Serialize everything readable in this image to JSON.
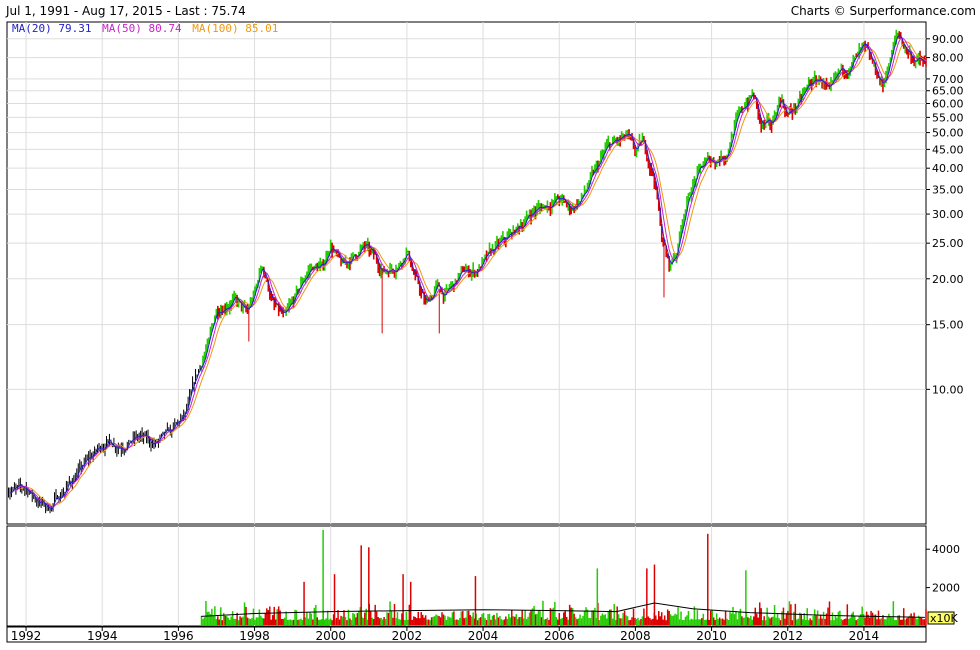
{
  "header": {
    "range_text": "Jul 1, 1991 - Aug 17, 2015 - Last : 75.74",
    "credit": "Charts © Surperformance.com"
  },
  "legend": [
    {
      "label": "MA(20)",
      "value": "79.31",
      "color": "#2222cc"
    },
    {
      "label": "MA(50)",
      "value": "80.74",
      "color": "#cc22cc"
    },
    {
      "label": "MA(100)",
      "value": "85.01",
      "color": "#ee9911"
    }
  ],
  "colors": {
    "up": "#22cc00",
    "down": "#dd0000",
    "early": "#000000",
    "grid": "#dddddd"
  },
  "chart_data": [
    {
      "type": "line",
      "title": "Jul 1, 1991 - Aug 17, 2015 - Last : 75.74",
      "scale": "log",
      "grid": true,
      "y_ticks": [
        10,
        15,
        20,
        25,
        30,
        35,
        40,
        45,
        50,
        55,
        60,
        65,
        70,
        80,
        90
      ],
      "y_tick_labels": [
        "10.00",
        "15.00",
        "20.00",
        "25.00",
        "30.00",
        "35.00",
        "40.00",
        "45.00",
        "50.00",
        "55.00",
        "60.00",
        "65.00",
        "70.00",
        "80.00",
        "90.00"
      ],
      "x_tick_labels": [
        "1992",
        "1994",
        "1996",
        "1998",
        "2000",
        "2002",
        "2004",
        "2006",
        "2008",
        "2010",
        "2012",
        "2014"
      ],
      "x_ticks": [
        1992,
        1994,
        1996,
        1998,
        2000,
        2002,
        2004,
        2006,
        2008,
        2010,
        2012,
        2014
      ],
      "xlim": [
        1991.5,
        2015.63
      ],
      "ylim": [
        4.3,
        100
      ],
      "last": 75.74,
      "series": [
        {
          "name": "Price",
          "x": [
            1991.5,
            1991.8,
            1992.0,
            1992.3,
            1992.6,
            1993.0,
            1993.4,
            1993.8,
            1994.1,
            1994.5,
            1995.0,
            1995.4,
            1995.8,
            1996.2,
            1996.5,
            1996.8,
            1997.0,
            1997.3,
            1997.5,
            1997.8,
            1998.0,
            1998.2,
            1998.5,
            1998.8,
            1999.0,
            1999.3,
            1999.5,
            1999.8,
            2000.0,
            2000.3,
            2000.6,
            2000.9,
            2001.2,
            2001.4,
            2001.6,
            2001.8,
            2002.0,
            2002.2,
            2002.5,
            2002.8,
            2003.0,
            2003.2,
            2003.5,
            2003.8,
            2004.0,
            2004.3,
            2004.6,
            2005.0,
            2005.3,
            2005.6,
            2006.0,
            2006.3,
            2006.6,
            2007.0,
            2007.3,
            2007.6,
            2007.8,
            2008.0,
            2008.2,
            2008.5,
            2008.7,
            2008.9,
            2009.1,
            2009.3,
            2009.6,
            2009.9,
            2010.1,
            2010.4,
            2010.6,
            2010.9,
            2011.1,
            2011.3,
            2011.6,
            2011.8,
            2012.0,
            2012.3,
            2012.6,
            2012.9,
            2013.1,
            2013.4,
            2013.7,
            2014.0,
            2014.3,
            2014.5,
            2014.7,
            2014.9,
            2015.1,
            2015.3,
            2015.5,
            2015.63
          ],
          "values": [
            5.4,
            5.3,
            5.4,
            5.0,
            4.75,
            5.3,
            6.0,
            6.7,
            7.2,
            7.1,
            7.4,
            7.1,
            7.6,
            8.5,
            11.0,
            13.3,
            16.5,
            17.3,
            17.5,
            16.0,
            18.0,
            22.0,
            17.0,
            15.5,
            17.0,
            20.0,
            21.5,
            21.5,
            25.0,
            21.5,
            23.0,
            24.5,
            22.5,
            21.0,
            21.5,
            22.0,
            24.0,
            20.5,
            17.0,
            19.0,
            18.0,
            19.0,
            21.0,
            21.0,
            22.0,
            24.0,
            25.5,
            28.0,
            30.5,
            31.5,
            33.0,
            31.0,
            33.0,
            40.0,
            46.0,
            47.5,
            48.5,
            44.0,
            47.0,
            38.0,
            26.0,
            21.5,
            24.0,
            31.0,
            38.0,
            42.0,
            42.0,
            44.0,
            52.0,
            60.0,
            64.0,
            52.0,
            52.0,
            63.0,
            56.0,
            60.0,
            68.0,
            70.0,
            63.0,
            73.0,
            77.0,
            84.0,
            74.0,
            67.0,
            80.0,
            93.0,
            85.0,
            80.0,
            78.0,
            75.74
          ]
        },
        {
          "name": "MA(20)",
          "last": 79.31
        },
        {
          "name": "MA(50)",
          "last": 80.74
        },
        {
          "name": "MA(100)",
          "last": 85.01
        }
      ]
    },
    {
      "type": "bar",
      "unit": "x10K",
      "ylim": [
        0,
        5000
      ],
      "y_ticks": [
        2000,
        4000
      ],
      "y_tick_labels": [
        "2000",
        "4000"
      ],
      "x_start": 1996.6,
      "avg_line_color": "#000000",
      "spikes": [
        {
          "x": 1999.8,
          "value": 5000,
          "color": "#22cc00"
        },
        {
          "x": 2000.8,
          "value": 4200,
          "color": "#dd0000"
        },
        {
          "x": 2001.0,
          "value": 4100,
          "color": "#dd0000"
        },
        {
          "x": 1999.3,
          "value": 2300,
          "color": "#dd0000"
        },
        {
          "x": 2000.1,
          "value": 2700,
          "color": "#dd0000"
        },
        {
          "x": 2001.9,
          "value": 2700,
          "color": "#dd0000"
        },
        {
          "x": 2002.1,
          "value": 2300,
          "color": "#dd0000"
        },
        {
          "x": 2003.8,
          "value": 2600,
          "color": "#dd0000"
        },
        {
          "x": 2007.0,
          "value": 3000,
          "color": "#22cc00"
        },
        {
          "x": 2008.3,
          "value": 3000,
          "color": "#dd0000"
        },
        {
          "x": 2008.5,
          "value": 3200,
          "color": "#dd0000"
        },
        {
          "x": 2009.9,
          "value": 4800,
          "color": "#dd0000"
        },
        {
          "x": 2010.9,
          "value": 2900,
          "color": "#22cc00"
        }
      ],
      "avg_volume": [
        {
          "x": 1996.6,
          "value": 500
        },
        {
          "x": 1998.0,
          "value": 650
        },
        {
          "x": 2000.0,
          "value": 750
        },
        {
          "x": 2002.0,
          "value": 800
        },
        {
          "x": 2004.0,
          "value": 850
        },
        {
          "x": 2006.0,
          "value": 800
        },
        {
          "x": 2007.5,
          "value": 750
        },
        {
          "x": 2008.5,
          "value": 1200
        },
        {
          "x": 2009.5,
          "value": 900
        },
        {
          "x": 2011.0,
          "value": 700
        },
        {
          "x": 2013.0,
          "value": 550
        },
        {
          "x": 2015.6,
          "value": 450
        }
      ]
    }
  ]
}
